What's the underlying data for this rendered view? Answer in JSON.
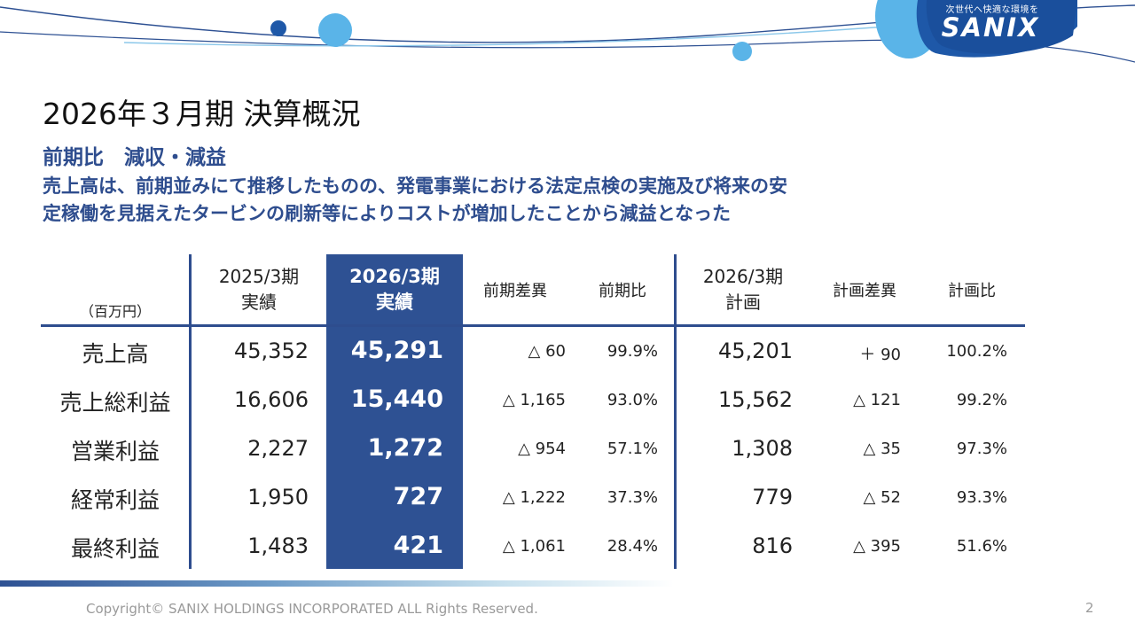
{
  "logo": {
    "tagline": "次世代へ快適な環境を",
    "wordmark": "SANIX"
  },
  "title": "2026年３月期 決算概況",
  "subtitle": "前期比　減収・減益",
  "description": [
    "売上高は、前期並みにて推移したものの、発電事業における法定点検の実施及び将来の安",
    "定稼働を見据えたタービンの刷新等によりコストが増加したことから減益となった"
  ],
  "table": {
    "unit_label": "（百万円）",
    "headers": {
      "prev_actual": [
        "2025/3期",
        "実績"
      ],
      "curr_actual": [
        "2026/3期",
        "実績"
      ],
      "yoy_diff": "前期差異",
      "yoy_ratio": "前期比",
      "plan": [
        "2026/3期",
        "計画"
      ],
      "plan_diff": "計画差異",
      "plan_ratio": "計画比"
    },
    "rows": [
      {
        "label": "売上高",
        "prev": "45,352",
        "curr": "45,291",
        "yoy_diff": "△ 60",
        "yoy_ratio": "99.9%",
        "plan": "45,201",
        "plan_diff": "＋ 90",
        "plan_ratio": "100.2%"
      },
      {
        "label": "売上総利益",
        "prev": "16,606",
        "curr": "15,440",
        "yoy_diff": "△ 1,165",
        "yoy_ratio": "93.0%",
        "plan": "15,562",
        "plan_diff": "△ 121",
        "plan_ratio": "99.2%"
      },
      {
        "label": "営業利益",
        "prev": "2,227",
        "curr": "1,272",
        "yoy_diff": "△ 954",
        "yoy_ratio": "57.1%",
        "plan": "1,308",
        "plan_diff": "△ 35",
        "plan_ratio": "97.3%"
      },
      {
        "label": "経常利益",
        "prev": "1,950",
        "curr": "727",
        "yoy_diff": "△ 1,222",
        "yoy_ratio": "37.3%",
        "plan": "779",
        "plan_diff": "△ 52",
        "plan_ratio": "93.3%"
      },
      {
        "label": "最終利益",
        "prev": "1,483",
        "curr": "421",
        "yoy_diff": "△ 1,061",
        "yoy_ratio": "28.4%",
        "plan": "816",
        "plan_diff": "△ 395",
        "plan_ratio": "51.6%"
      }
    ]
  },
  "footer": {
    "copyright": "Copyright© SANIX HOLDINGS INCORPORATED  ALL Rights Reserved.",
    "page_number": "2"
  },
  "colors": {
    "accent": "#2e5193",
    "text_blue": "#2e4d8e",
    "light_blue": "#5ab4e8"
  }
}
